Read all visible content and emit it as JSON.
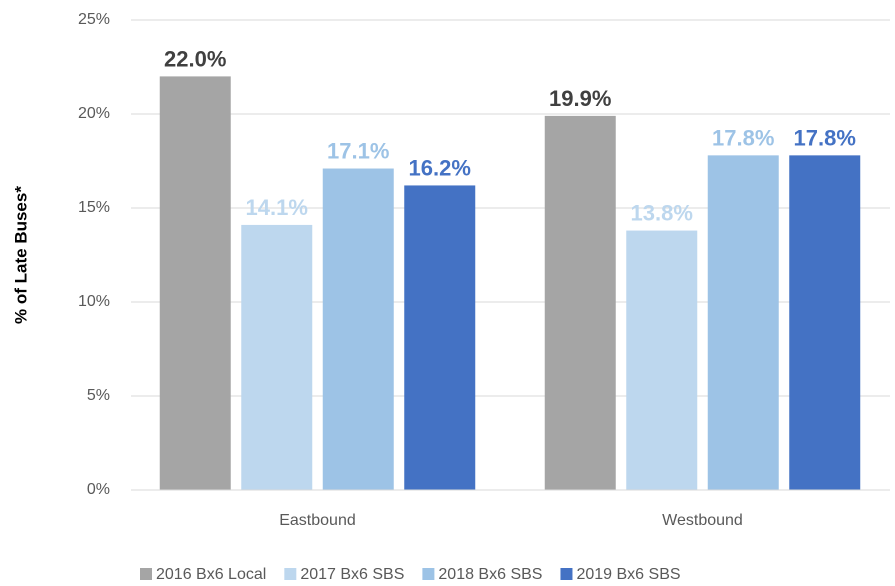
{
  "chart_data": {
    "type": "bar",
    "y_label": "% of Late Buses*",
    "categories": [
      "Eastbound",
      "Westbound"
    ],
    "series": [
      {
        "name": "2016 Bx6 Local",
        "color": "#a5a5a5",
        "label_color": "#404040",
        "values": [
          22.0,
          19.9
        ],
        "value_labels": [
          "22.0%",
          "19.9%"
        ]
      },
      {
        "name": "2017 Bx6 SBS",
        "color": "#bdd7ee",
        "label_color": "#bdd7ee",
        "values": [
          14.1,
          13.8
        ],
        "value_labels": [
          "14.1%",
          "13.8%"
        ]
      },
      {
        "name": "2018 Bx6 SBS",
        "color": "#9dc3e6",
        "label_color": "#9dc3e6",
        "values": [
          17.1,
          17.8
        ],
        "value_labels": [
          "17.1%",
          "17.8%"
        ]
      },
      {
        "name": "2019 Bx6 SBS",
        "color": "#4472c4",
        "label_color": "#4472c4",
        "values": [
          16.2,
          17.8
        ],
        "value_labels": [
          "16.2%",
          "17.8%"
        ]
      }
    ],
    "ylim": [
      0,
      25
    ],
    "yticks": [
      {
        "value": 0,
        "label": "0%"
      },
      {
        "value": 5,
        "label": "5%"
      },
      {
        "value": 10,
        "label": "10%"
      },
      {
        "value": 15,
        "label": "15%"
      },
      {
        "value": 20,
        "label": "20%"
      },
      {
        "value": 25,
        "label": "25%"
      }
    ],
    "grid": true,
    "legend": "bottom"
  }
}
